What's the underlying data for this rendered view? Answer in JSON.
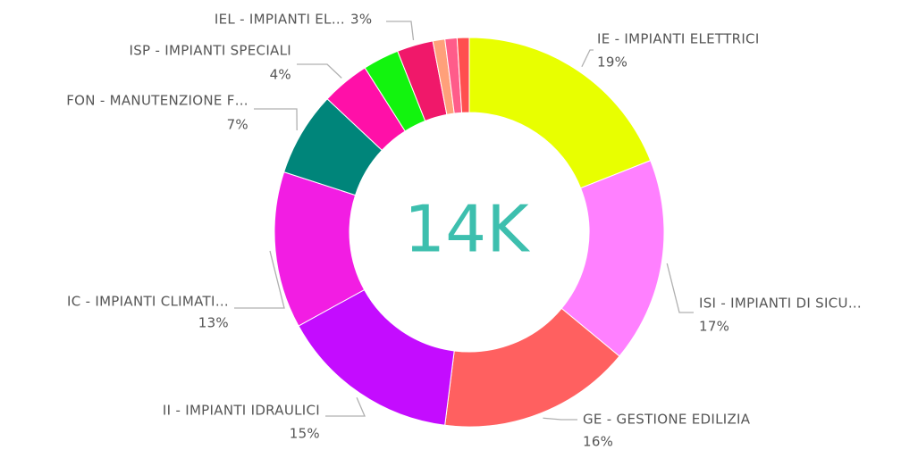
{
  "chart_data": {
    "type": "donut",
    "center_label": "14K",
    "categories": [
      "IE - IMPIANTI ELETTRICI",
      "ISI - IMPIANTI DI SICU…",
      "GE - GESTIONE EDILIZIA",
      "II - IMPIANTI IDRAULICI",
      "IC - IMPIANTI CLIMATI…",
      "FON - MANUTENZIONE F…",
      "ISP - IMPIANTI SPECIALI",
      null,
      "IEL - IMPIANTI EL…",
      null,
      null,
      null
    ],
    "values": [
      19,
      17,
      16,
      15,
      13,
      7,
      4,
      3,
      3,
      1,
      1,
      1
    ],
    "value_labels": [
      "19%",
      "17%",
      "16%",
      "15%",
      "13%",
      "7%",
      "4%",
      null,
      "3%",
      null,
      null,
      null
    ],
    "colors": [
      "#e8ff00",
      "#ff80ff",
      "#ff6060",
      "#c40cff",
      "#f21de3",
      "#00857a",
      "#ff10a8",
      "#12f40e",
      "#f0186a",
      "#ffa07a",
      "#ff5c8a",
      "#ff4f4f"
    ]
  }
}
